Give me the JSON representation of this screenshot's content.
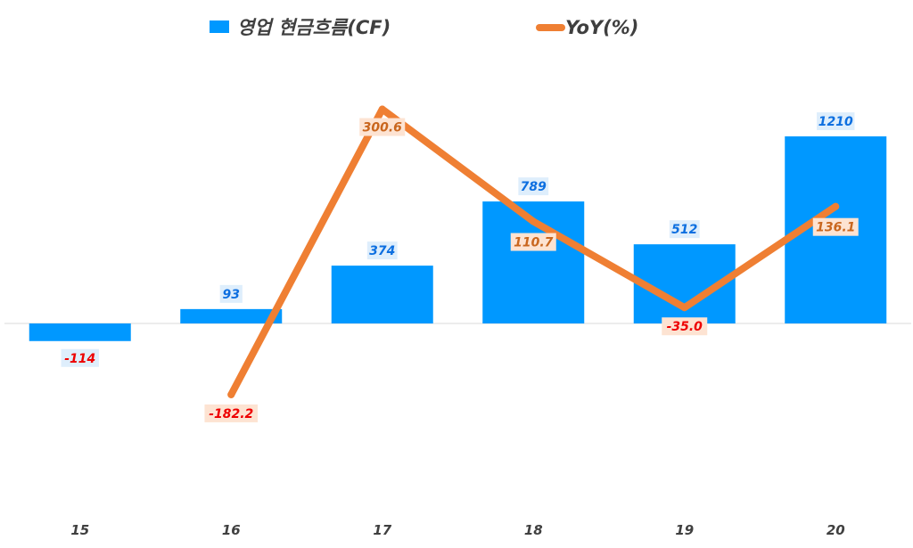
{
  "colors": {
    "bar": "#0098ff",
    "line": "#ef7f33",
    "bar_label_positive": "#0d6fe0",
    "bar_label_negative": "#ee0000",
    "line_label_positive": "#c9661e",
    "line_label_negative": "#ee0000",
    "bar_label_bg": "#deeefc",
    "line_label_bg": "#fde3d2",
    "baseline": "#d9d9d9",
    "tick_text": "#404040",
    "legend_text": "#3f3f3f"
  },
  "legend": {
    "bar_label": "영업 현금흐름(CF)",
    "line_label": "YoY(%)"
  },
  "chart_data": {
    "type": "bar",
    "combo": "bar+line",
    "categories": [
      "15",
      "16",
      "17",
      "18",
      "19",
      "20"
    ],
    "series": [
      {
        "name": "영업 현금흐름(CF)",
        "type": "bar",
        "axis": "primary",
        "values": [
          -114,
          93,
          374,
          789,
          512,
          1210
        ],
        "labels": [
          "-114",
          "93",
          "374",
          "789",
          "512",
          "1210"
        ]
      },
      {
        "name": "YoY(%)",
        "type": "line",
        "axis": "secondary",
        "values": [
          null,
          -182.2,
          300.6,
          110.7,
          -35.0,
          136.1
        ],
        "labels": [
          "",
          "-182.2",
          "300.6",
          "110.7",
          "-35.0",
          "136.1"
        ]
      }
    ],
    "primary_ylim": [
      -300,
      1400
    ],
    "secondary_ylim": [
      -270,
      340
    ],
    "legend_position": "top",
    "grid": false,
    "xlabel": "",
    "ylabel": ""
  }
}
